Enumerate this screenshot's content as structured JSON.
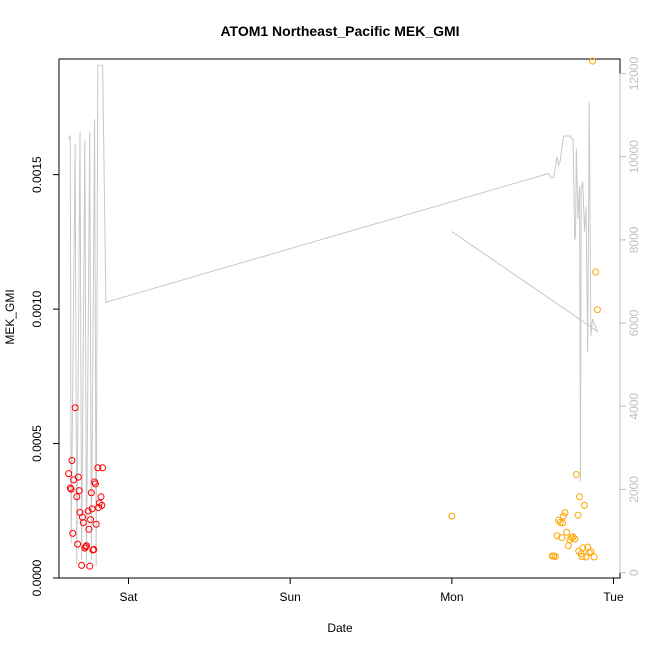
{
  "chart_data": {
    "type": "scatter",
    "title": "ATOM1 Northeast_Pacific MEK_GMI",
    "xlabel": "Date",
    "ylabel": "MEK_GMI",
    "ylim": [
      0,
      0.00193
    ],
    "y_ticks": [
      {
        "value": 0,
        "label": "0.0000"
      },
      {
        "value": 0.0005,
        "label": "0.0005"
      },
      {
        "value": 0.001,
        "label": "0.0010"
      },
      {
        "value": 0.0015,
        "label": "0.0015"
      }
    ],
    "xlim": [
      -0.43,
      3.04
    ],
    "x_ticks": [
      {
        "value": 0,
        "label": "Sat"
      },
      {
        "value": 1,
        "label": "Sun"
      },
      {
        "value": 2,
        "label": "Mon"
      },
      {
        "value": 3,
        "label": "Tue"
      }
    ],
    "y2lim": [
      -130,
      12350
    ],
    "y2_ticks": [
      {
        "value": 0,
        "label": "0"
      },
      {
        "value": 2000,
        "label": "2000"
      },
      {
        "value": 4000,
        "label": "4000"
      },
      {
        "value": 6000,
        "label": "6000"
      },
      {
        "value": 8000,
        "label": "8000"
      },
      {
        "value": 10000,
        "label": "10000"
      },
      {
        "value": 12000,
        "label": "12000"
      }
    ],
    "grid": false,
    "series": [
      {
        "color": "#ff0000",
        "points": [
          [
            -0.37,
            0.000388
          ],
          [
            -0.36,
            0.000335
          ],
          [
            -0.35,
            0.000437
          ],
          [
            -0.355,
            0.00033
          ],
          [
            -0.34,
            0.000365
          ],
          [
            -0.33,
            0.000633
          ],
          [
            -0.32,
            0.000302
          ],
          [
            -0.315,
            0.000126
          ],
          [
            -0.31,
            0.000375
          ],
          [
            -0.305,
            0.000325
          ],
          [
            -0.3,
            0.000244
          ],
          [
            -0.29,
            4.7e-05
          ],
          [
            -0.285,
            0.000226
          ],
          [
            -0.28,
            0.000206
          ],
          [
            -0.27,
            0.000111
          ],
          [
            -0.265,
            0.000116
          ],
          [
            -0.26,
            0.00012
          ],
          [
            -0.25,
            0.000249
          ],
          [
            -0.245,
            0.000181
          ],
          [
            -0.24,
            4.4e-05
          ],
          [
            -0.235,
            0.000217
          ],
          [
            -0.23,
            0.000317
          ],
          [
            -0.225,
            0.000257
          ],
          [
            -0.22,
            0.000104
          ],
          [
            -0.215,
            0.000106
          ],
          [
            -0.21,
            0.000357
          ],
          [
            -0.205,
            0.00035
          ],
          [
            -0.2,
            0.0002
          ],
          [
            -0.19,
            0.00041
          ],
          [
            -0.185,
            0.000262
          ],
          [
            -0.18,
            0.000279
          ],
          [
            -0.17,
            0.000302
          ],
          [
            -0.165,
            0.00027
          ],
          [
            -0.16,
            0.00041
          ],
          [
            -0.345,
            0.000166
          ]
        ]
      },
      {
        "color": "#ffa500",
        "points": [
          [
            2.0,
            0.00023
          ],
          [
            2.62,
            8.2e-05
          ],
          [
            2.63,
            8.2e-05
          ],
          [
            2.64,
            8e-05
          ],
          [
            2.65,
            0.000157
          ],
          [
            2.66,
            0.000215
          ],
          [
            2.67,
            0.000207
          ],
          [
            2.68,
            0.00015
          ],
          [
            2.685,
            0.000205
          ],
          [
            2.69,
            0.00023
          ],
          [
            2.7,
            0.000243
          ],
          [
            2.71,
            0.00017
          ],
          [
            2.72,
            0.00012
          ],
          [
            2.73,
            0.000142
          ],
          [
            2.74,
            0.00015
          ],
          [
            2.75,
            0.000153
          ],
          [
            2.76,
            0.000145
          ],
          [
            2.77,
            0.000385
          ],
          [
            2.78,
            0.000234
          ],
          [
            2.785,
            0.0001
          ],
          [
            2.79,
            0.000302
          ],
          [
            2.8,
            9e-05
          ],
          [
            2.805,
            8e-05
          ],
          [
            2.81,
            0.000112
          ],
          [
            2.82,
            0.00027
          ],
          [
            2.83,
            7.8e-05
          ],
          [
            2.84,
            0.000115
          ],
          [
            2.85,
            9.4e-05
          ],
          [
            2.86,
            9.8e-05
          ],
          [
            2.87,
            0.001922
          ],
          [
            2.88,
            7.8e-05
          ],
          [
            2.89,
            0.001138
          ],
          [
            2.9,
            0.000998
          ]
        ]
      }
    ],
    "secondary_line": {
      "color": "#c8c8c8",
      "points": [
        [
          -0.37,
          10400
        ],
        [
          -0.365,
          10500
        ],
        [
          -0.36,
          10500
        ],
        [
          -0.355,
          700
        ],
        [
          -0.33,
          10300
        ],
        [
          -0.32,
          200
        ],
        [
          -0.3,
          10600
        ],
        [
          -0.29,
          300
        ],
        [
          -0.27,
          10400
        ],
        [
          -0.26,
          250
        ],
        [
          -0.24,
          10600
        ],
        [
          -0.23,
          300
        ],
        [
          -0.21,
          10900
        ],
        [
          -0.2,
          150
        ],
        [
          -0.19,
          12200
        ],
        [
          -0.16,
          12200
        ],
        [
          -0.14,
          6500
        ],
        [
          2.6,
          9600
        ],
        [
          2.61,
          9500
        ],
        [
          2.63,
          9500
        ],
        [
          2.65,
          10000
        ],
        [
          2.66,
          9800
        ],
        [
          2.67,
          9900
        ],
        [
          2.69,
          10500
        ],
        [
          2.73,
          10500
        ],
        [
          2.75,
          10400
        ],
        [
          2.76,
          8000
        ],
        [
          2.765,
          8100
        ],
        [
          2.77,
          10200
        ],
        [
          2.78,
          8500
        ],
        [
          2.79,
          9300
        ],
        [
          2.795,
          2200
        ],
        [
          2.8,
          9200
        ],
        [
          2.81,
          9400
        ],
        [
          2.82,
          8200
        ],
        [
          2.83,
          8800
        ],
        [
          2.84,
          5300
        ],
        [
          2.85,
          11300
        ],
        [
          2.86,
          5700
        ],
        [
          2.87,
          6100
        ],
        [
          2.9,
          5800
        ],
        [
          2.0,
          8200
        ]
      ]
    }
  }
}
